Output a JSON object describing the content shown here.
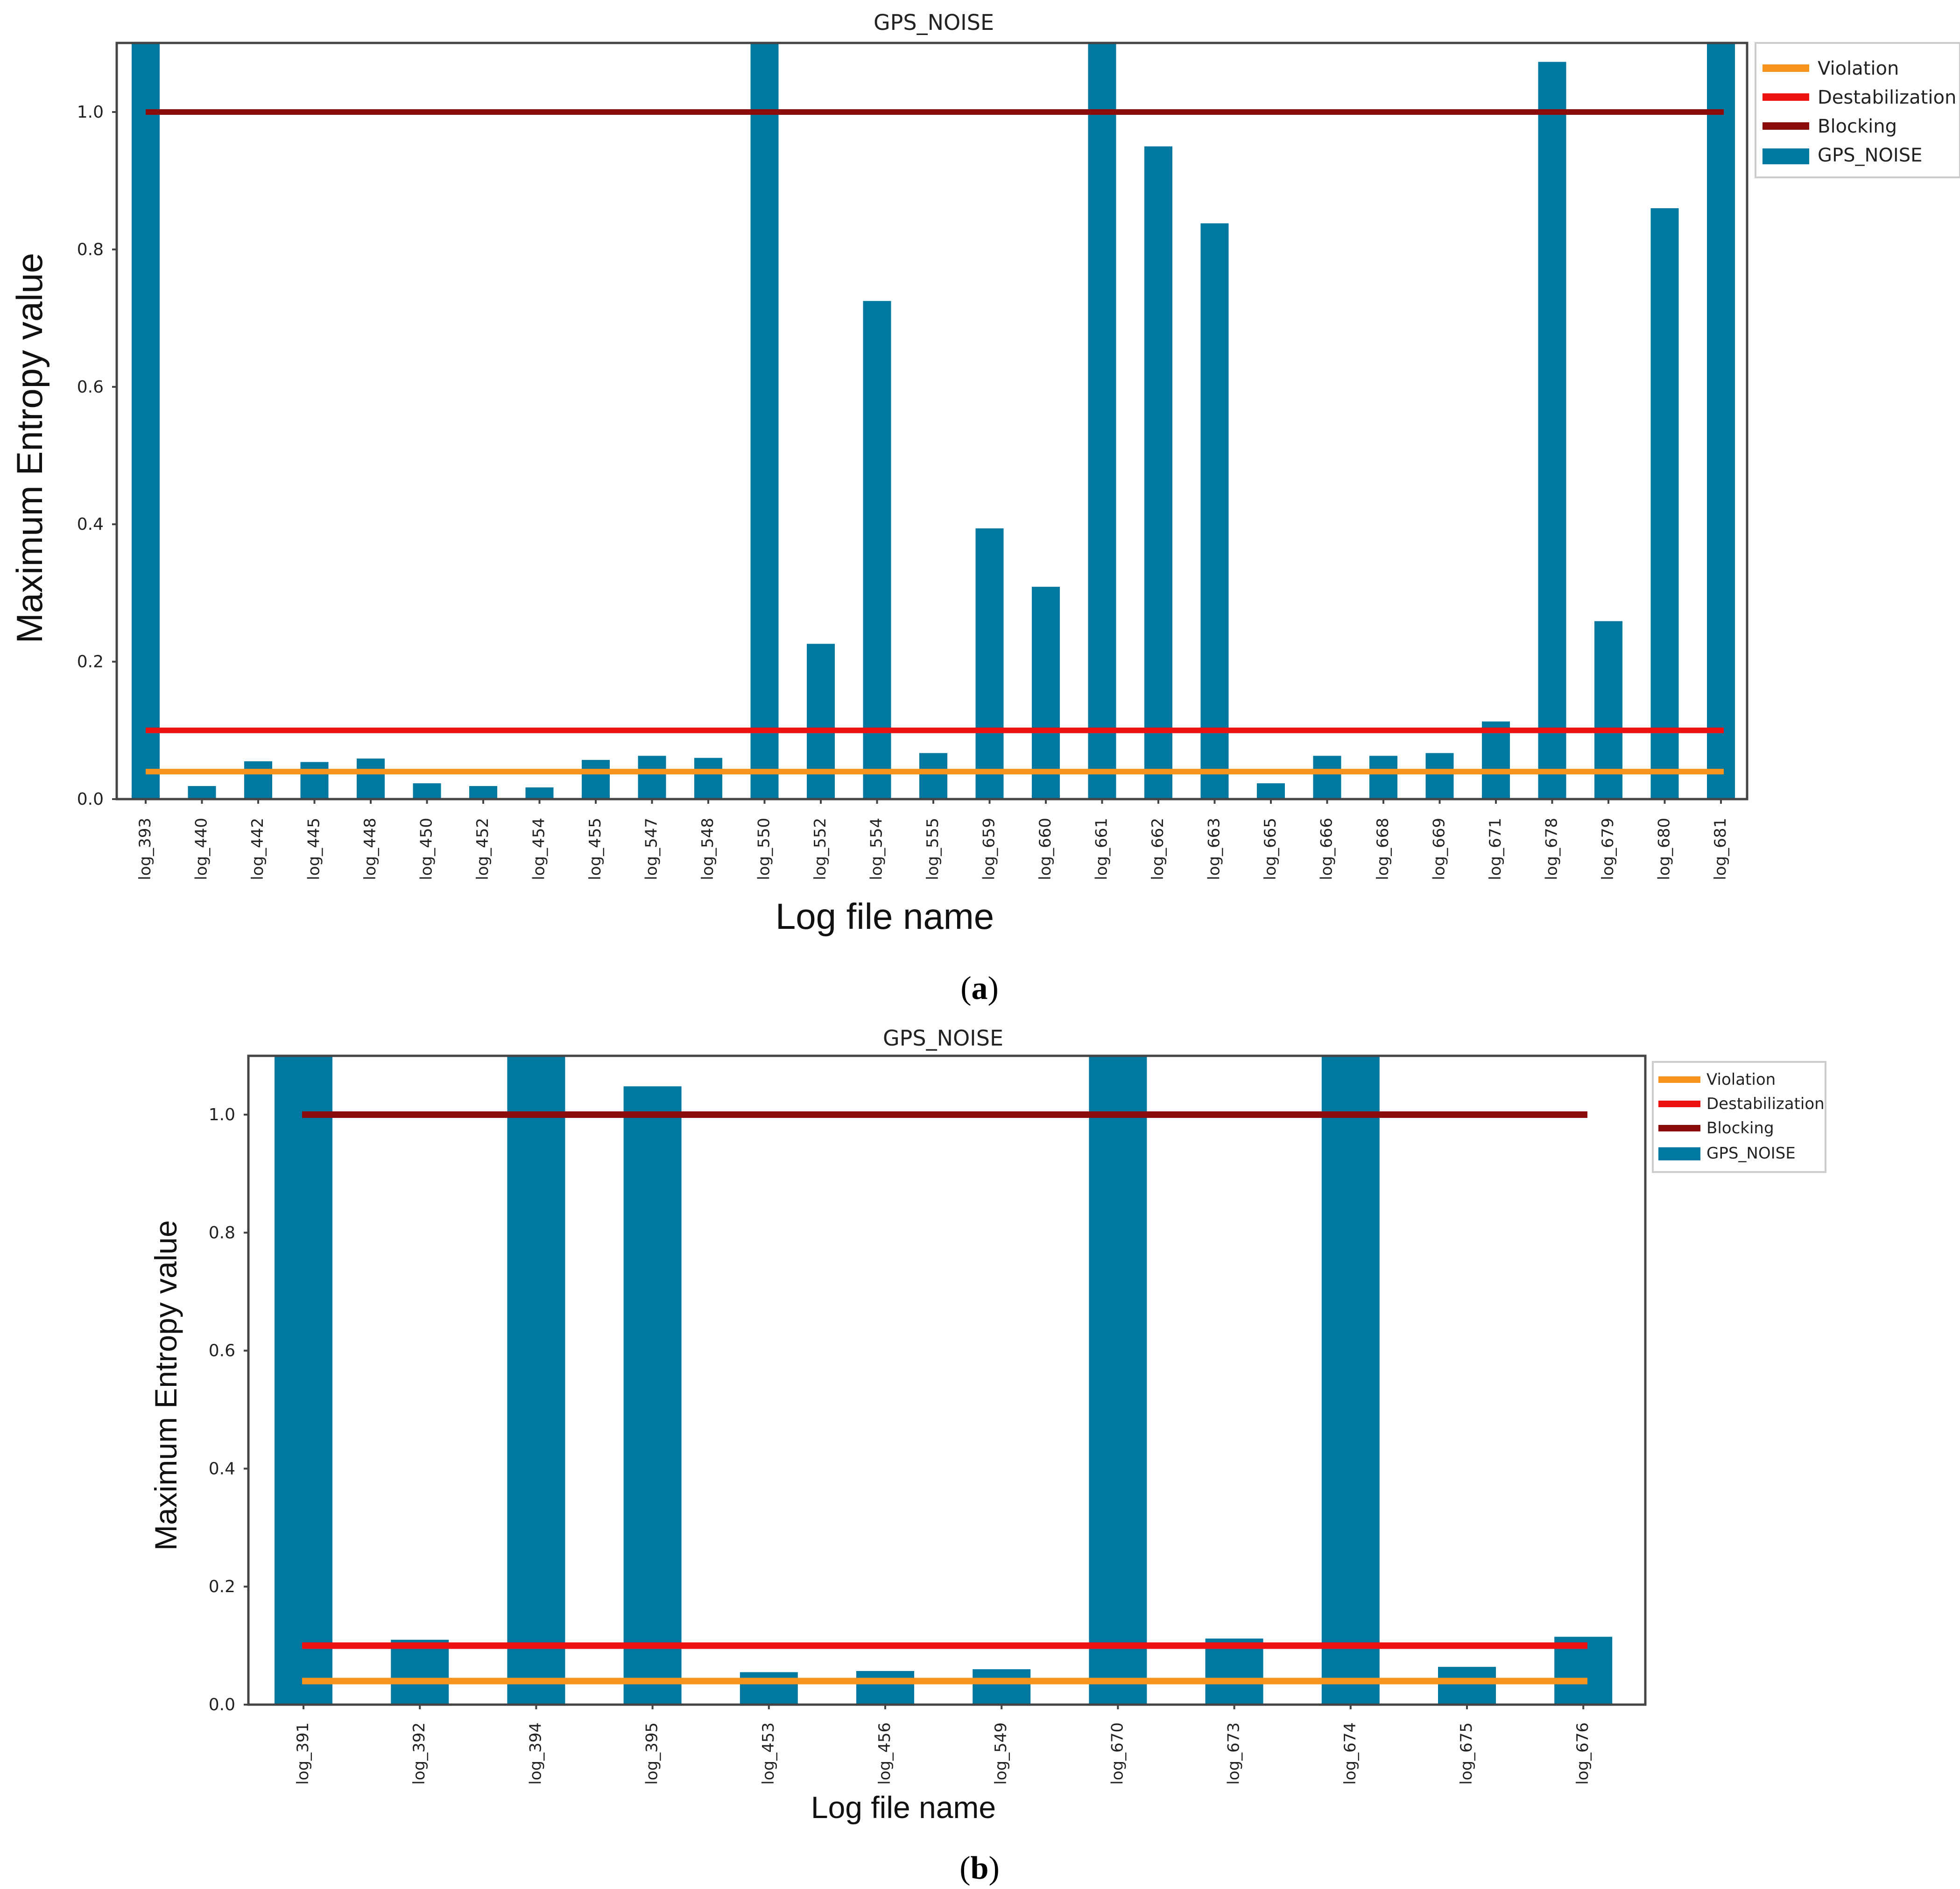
{
  "colors": {
    "bar": "#00789F",
    "violation": "#F7941D",
    "destabilization": "#EE1111",
    "blocking": "#8B0A0A"
  },
  "chart_data": [
    {
      "panel": "a",
      "caption": "a",
      "type": "bar",
      "title": "GPS_NOISE",
      "xlabel": "Log file name",
      "ylabel": "Maximum Entropy value",
      "ylim": [
        0,
        1.1
      ],
      "yticks": [
        "0.0",
        "0.2",
        "0.4",
        "0.6",
        "0.8",
        "1.0"
      ],
      "categories": [
        "log_393",
        "log_440",
        "log_442",
        "log_445",
        "log_448",
        "log_450",
        "log_452",
        "log_454",
        "log_455",
        "log_547",
        "log_548",
        "log_550",
        "log_552",
        "log_554",
        "log_555",
        "log_659",
        "log_660",
        "log_661",
        "log_662",
        "log_663",
        "log_665",
        "log_666",
        "log_668",
        "log_669",
        "log_671",
        "log_678",
        "log_679",
        "log_680",
        "log_681"
      ],
      "series": [
        {
          "name": "GPS_NOISE",
          "values": [
            1.1,
            0.019,
            0.055,
            0.054,
            0.059,
            0.023,
            0.019,
            0.017,
            0.057,
            0.063,
            0.06,
            1.1,
            0.226,
            0.725,
            0.067,
            0.394,
            0.309,
            1.1,
            0.95,
            0.838,
            0.023,
            0.063,
            0.063,
            0.067,
            0.113,
            1.073,
            0.259,
            0.86,
            1.1
          ]
        }
      ],
      "thresholds": [
        {
          "name": "Violation",
          "value": 0.04
        },
        {
          "name": "Destabilization",
          "value": 0.1
        },
        {
          "name": "Blocking",
          "value": 1.0
        }
      ],
      "legend": [
        "Violation",
        "Destabilization",
        "Blocking",
        "GPS_NOISE"
      ],
      "legend_position": "outside-top-right"
    },
    {
      "panel": "b",
      "caption": "b",
      "type": "bar",
      "title": "GPS_NOISE",
      "xlabel": "Log file name",
      "ylabel": "Maximum Entropy value",
      "ylim": [
        0,
        1.1
      ],
      "yticks": [
        "0.0",
        "0.2",
        "0.4",
        "0.6",
        "0.8",
        "1.0"
      ],
      "categories": [
        "log_391",
        "log_392",
        "log_394",
        "log_395",
        "log_453",
        "log_456",
        "log_549",
        "log_670",
        "log_673",
        "log_674",
        "log_675",
        "log_676"
      ],
      "series": [
        {
          "name": "GPS_NOISE",
          "values": [
            1.1,
            0.11,
            1.1,
            1.048,
            0.055,
            0.057,
            0.06,
            1.1,
            0.112,
            1.1,
            0.064,
            0.115
          ]
        }
      ],
      "thresholds": [
        {
          "name": "Violation",
          "value": 0.04
        },
        {
          "name": "Destabilization",
          "value": 0.1
        },
        {
          "name": "Blocking",
          "value": 1.0
        }
      ],
      "legend": [
        "Violation",
        "Destabilization",
        "Blocking",
        "GPS_NOISE"
      ],
      "legend_position": "outside-top-right"
    }
  ]
}
